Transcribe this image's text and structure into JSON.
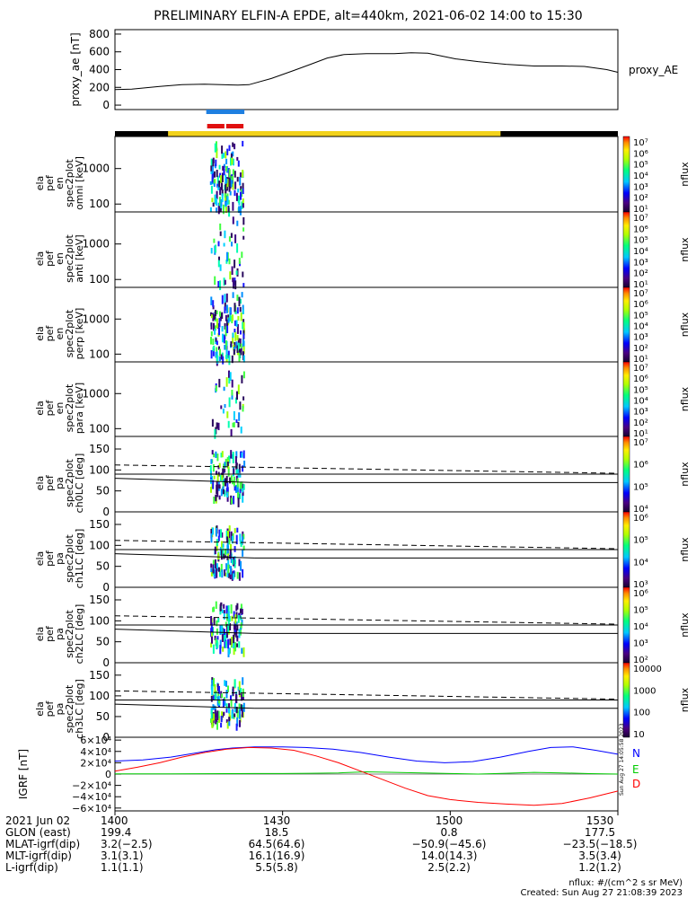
{
  "title": "PRELIMINARY ELFIN-A EPDE, alt=440km, 2021-06-02 14:00 to 15:30",
  "colors": {
    "ae": "#000000",
    "bar_blue": "#1f7fe0",
    "bar_red": "#e01010",
    "status_yellow": "#f2d21b",
    "status_black": "#000000",
    "igrf_n": "#0000ff",
    "igrf_e": "#00cc00",
    "igrf_d": "#ff0000"
  },
  "ae_panel": {
    "ylabel": "proxy_ae [nT]",
    "legend": "proxy_AE",
    "yticks": [
      "800",
      "600",
      "400",
      "200",
      "0"
    ]
  },
  "energy_panels": [
    {
      "label": "ela pef en spec2plot omni [keV]",
      "yticks": [
        "1000",
        "100"
      ],
      "cb_label": "nflux",
      "cb_ticks": [
        "10⁷",
        "10⁶",
        "10⁵",
        "10⁴",
        "10³",
        "10²",
        "10¹"
      ]
    },
    {
      "label": "ela pef en spec2plot anti [keV]",
      "yticks": [
        "1000",
        "100"
      ],
      "cb_label": "nflux",
      "cb_ticks": [
        "10⁷",
        "10⁶",
        "10⁵",
        "10⁴",
        "10³",
        "10²",
        "10¹"
      ]
    },
    {
      "label": "ela pef en spec2plot perp [keV]",
      "yticks": [
        "1000",
        "100"
      ],
      "cb_label": "nflux",
      "cb_ticks": [
        "10⁷",
        "10⁶",
        "10⁵",
        "10⁴",
        "10³",
        "10²",
        "10¹"
      ]
    },
    {
      "label": "ela pef en spec2plot para [keV]",
      "yticks": [
        "1000",
        "100"
      ],
      "cb_label": "nflux",
      "cb_ticks": [
        "10⁷",
        "10⁶",
        "10⁵",
        "10⁴",
        "10³",
        "10²",
        "10¹"
      ]
    }
  ],
  "pa_panels": [
    {
      "label": "ela pef pa spec2plot ch0LC [deg]",
      "yticks": [
        "150",
        "100",
        "50",
        "0"
      ],
      "cb_label": "nflux",
      "cb_ticks": [
        "10⁷",
        "10⁶",
        "10⁵",
        "10⁴"
      ]
    },
    {
      "label": "ela pef pa spec2plot ch1LC [deg]",
      "yticks": [
        "150",
        "100",
        "50",
        "0"
      ],
      "cb_label": "nflux",
      "cb_ticks": [
        "10⁶",
        "10⁵",
        "10⁴",
        "10³"
      ]
    },
    {
      "label": "ela pef pa spec2plot ch2LC [deg]",
      "yticks": [
        "150",
        "100",
        "50",
        "0"
      ],
      "cb_label": "nflux",
      "cb_ticks": [
        "10⁶",
        "10⁵",
        "10⁴",
        "10³",
        "10²"
      ]
    },
    {
      "label": "ela pef pa spec2plot ch3LC [deg]",
      "yticks": [
        "150",
        "100",
        "50",
        "0"
      ],
      "cb_label": "nflux",
      "cb_ticks": [
        "10000",
        "1000",
        "100",
        "10"
      ]
    }
  ],
  "igrf_panel": {
    "ylabel": "IGRF [nT]",
    "yticks": [
      "6×10⁴",
      "4×10⁴",
      "2×10⁴",
      "0",
      "−2×10⁴",
      "−4×10⁴",
      "−6×10⁴"
    ],
    "legend": [
      "N",
      "E",
      "D"
    ],
    "stamp": "Sun Aug 27 14:05:58 2023"
  },
  "footer": {
    "rows": [
      {
        "label": "2021 Jun 02",
        "values": [
          "1400",
          "1430",
          "1500",
          "1530"
        ]
      },
      {
        "label": "GLON (east)",
        "values": [
          "199.4",
          "18.5",
          "0.8",
          "177.5"
        ]
      },
      {
        "label": "MLAT-igrf(dip)",
        "values": [
          "3.2(−2.5)",
          "64.5(64.6)",
          "−50.9(−45.6)",
          "−23.5(−18.5)"
        ]
      },
      {
        "label": "MLT-igrf(dip)",
        "values": [
          "3.1(3.1)",
          "16.1(16.9)",
          "14.0(14.3)",
          "3.5(3.4)"
        ]
      },
      {
        "label": "L-igrf(dip)",
        "values": [
          "1.1(1.1)",
          "5.5(5.8)",
          "2.5(2.2)",
          "1.2(1.2)"
        ]
      }
    ],
    "units": "nflux: #/(cm^2 s sr MeV)",
    "created": "Created: Sun Aug 27 21:08:39 2023"
  },
  "chart_data": {
    "type": "line",
    "title": "PRELIMINARY ELFIN-A EPDE, alt=440km, 2021-06-02 14:00 to 15:30",
    "x_axis": {
      "label": "2021 Jun 02",
      "ticks": [
        "1400",
        "1430",
        "1500",
        "1530"
      ],
      "range": [
        "14:00",
        "15:30"
      ]
    },
    "series": [
      {
        "name": "proxy_AE",
        "ylabel": "proxy_ae [nT]",
        "ylim": [
          -50,
          850
        ],
        "x": [
          "14:00",
          "14:03",
          "14:08",
          "14:12",
          "14:16",
          "14:19",
          "14:22",
          "14:24",
          "14:28",
          "14:32",
          "14:35",
          "14:38",
          "14:41",
          "14:45",
          "14:50",
          "14:53",
          "14:56",
          "15:01",
          "15:05",
          "15:10",
          "15:15",
          "15:20",
          "15:24",
          "15:28",
          "15:30"
        ],
        "values": [
          175,
          180,
          210,
          230,
          235,
          230,
          225,
          230,
          300,
          390,
          460,
          530,
          570,
          580,
          580,
          590,
          585,
          520,
          490,
          460,
          440,
          440,
          435,
          400,
          370
        ]
      },
      {
        "name": "N",
        "ylabel": "IGRF [nT]",
        "ylim": [
          -65000,
          65000
        ],
        "x": [
          "14:00",
          "14:05",
          "14:10",
          "14:15",
          "14:18",
          "14:21",
          "14:25",
          "14:30",
          "14:34",
          "14:39",
          "14:44",
          "14:49",
          "14:54",
          "14:59",
          "15:04",
          "15:09",
          "15:14",
          "15:18",
          "15:22",
          "15:26",
          "15:30"
        ],
        "values": [
          23000,
          25000,
          30000,
          38000,
          43000,
          46000,
          48000,
          48000,
          47000,
          44000,
          38000,
          30000,
          23000,
          20000,
          22000,
          30000,
          40000,
          47000,
          48000,
          42000,
          35000
        ]
      },
      {
        "name": "E",
        "ylabel": "IGRF [nT]",
        "ylim": [
          -65000,
          65000
        ],
        "x": [
          "14:00",
          "14:05",
          "14:10",
          "14:15",
          "14:20",
          "14:25",
          "14:30",
          "14:35",
          "14:40",
          "14:45",
          "14:50",
          "14:55",
          "15:00",
          "15:05",
          "15:10",
          "15:15",
          "15:20",
          "15:25",
          "15:30"
        ],
        "values": [
          500,
          400,
          300,
          600,
          800,
          900,
          1000,
          1500,
          2000,
          4000,
          3000,
          2000,
          1000,
          0,
          1500,
          3000,
          2000,
          800,
          0
        ]
      },
      {
        "name": "D",
        "ylabel": "IGRF [nT]",
        "ylim": [
          -65000,
          65000
        ],
        "x": [
          "14:00",
          "14:04",
          "14:08",
          "14:12",
          "14:16",
          "14:20",
          "14:24",
          "14:28",
          "14:32",
          "14:36",
          "14:40",
          "14:44",
          "14:48",
          "14:52",
          "14:56",
          "15:00",
          "15:05",
          "15:10",
          "15:15",
          "15:20",
          "15:25",
          "15:30"
        ],
        "values": [
          5000,
          12000,
          20000,
          30000,
          38000,
          44000,
          47000,
          46000,
          42000,
          32000,
          20000,
          5000,
          -10000,
          -25000,
          -38000,
          -45000,
          -50000,
          -53000,
          -55000,
          -52000,
          -42000,
          -30000
        ]
      }
    ]
  }
}
